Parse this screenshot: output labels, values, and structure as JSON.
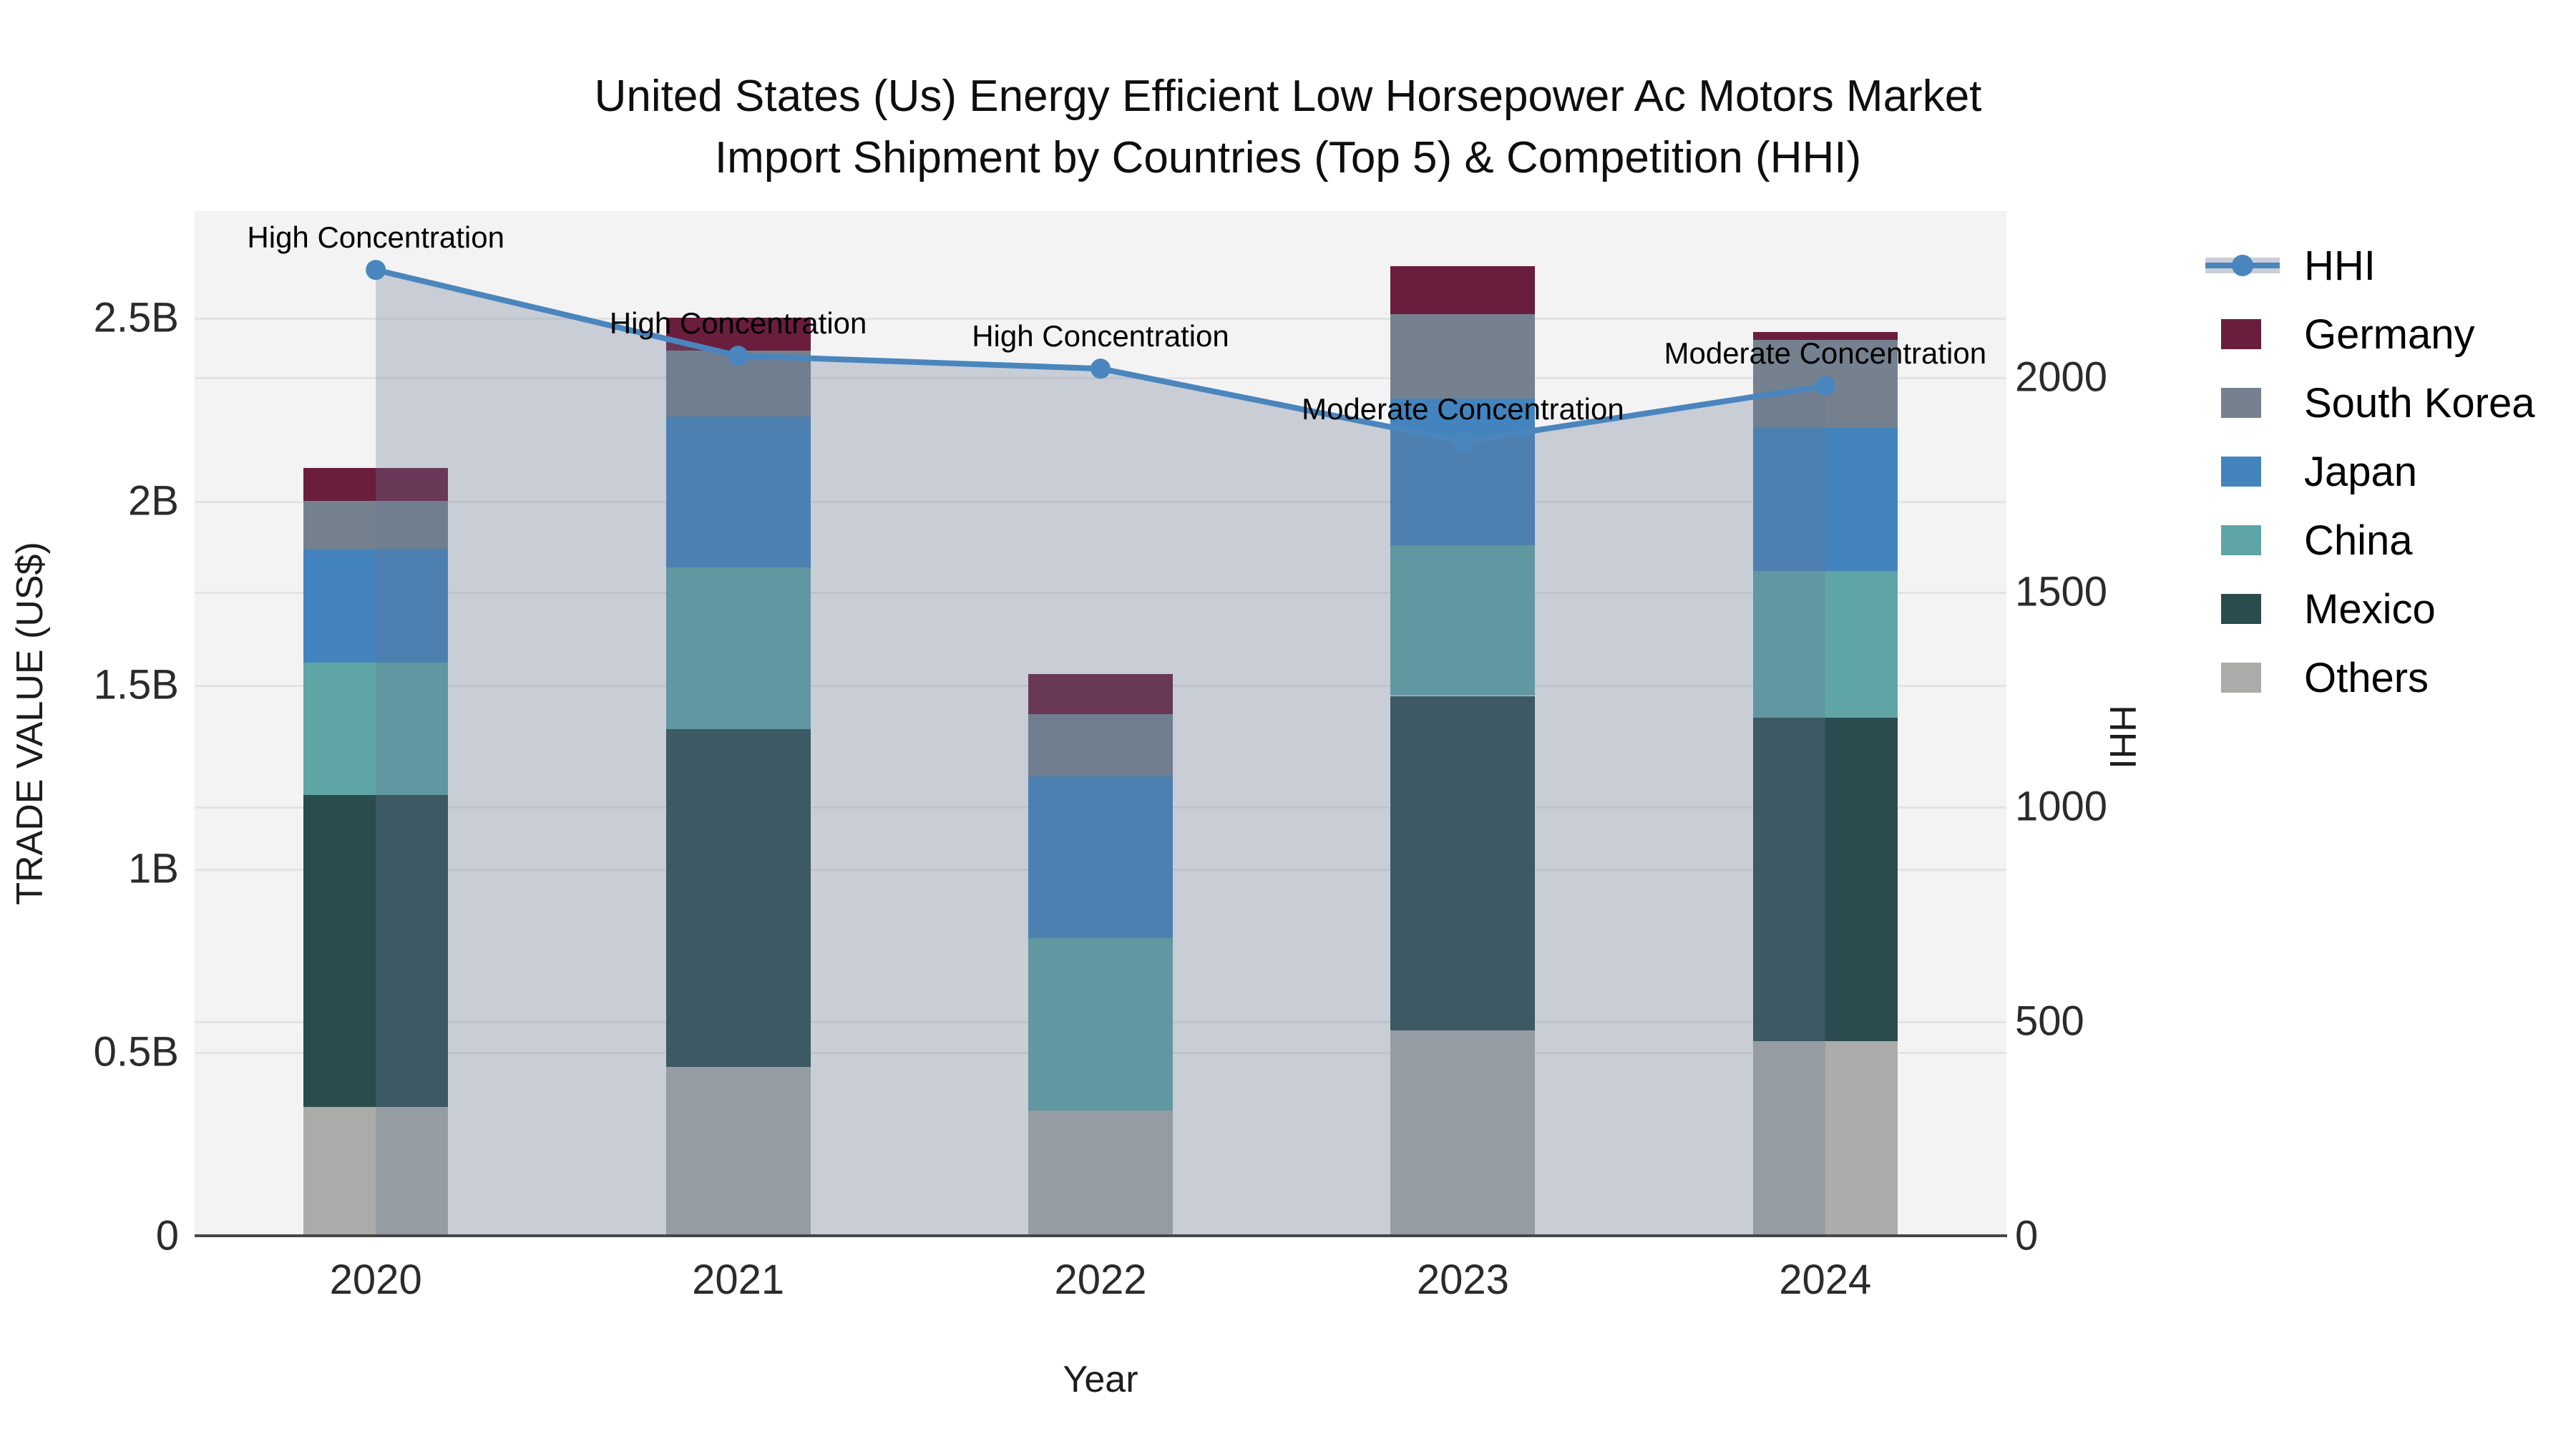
{
  "title": {
    "line1": "United States (Us) Energy Efficient Low Horsepower Ac Motors Market",
    "line2": "Import Shipment by Countries (Top 5) & Competition (HHI)"
  },
  "axes": {
    "y_left_title": "TRADE VALUE (US$)",
    "y_right_title": "HHI",
    "x_title": "Year"
  },
  "legend": {
    "items": [
      {
        "label": "HHI",
        "type": "line",
        "color": "#4A86BD",
        "band_color": "#C9CED8"
      },
      {
        "label": "Germany",
        "type": "box",
        "color": "#6B1D3D"
      },
      {
        "label": "South Korea",
        "type": "box",
        "color": "#75818F"
      },
      {
        "label": "Japan",
        "type": "box",
        "color": "#4384BE"
      },
      {
        "label": "China",
        "type": "box",
        "color": "#5FA5A5"
      },
      {
        "label": "Mexico",
        "type": "box",
        "color": "#2B4C4E"
      },
      {
        "label": "Others",
        "type": "box",
        "color": "#ABACA9"
      }
    ]
  },
  "chart_data": {
    "type": "bar+line",
    "title": "United States (Us) Energy Efficient Low Horsepower Ac Motors Market Import Shipment by Countries (Top 5) & Competition (HHI)",
    "categories": [
      "2020",
      "2021",
      "2022",
      "2023",
      "2024"
    ],
    "xlabel": "Year",
    "ylabel_left": "TRADE VALUE (US$)",
    "ylabel_right": "HHI",
    "bar_mode": "stacked",
    "bar_series": [
      {
        "name": "Others",
        "color": "#ABACA9",
        "values": [
          0.35,
          0.46,
          0.34,
          0.56,
          0.53
        ]
      },
      {
        "name": "Mexico",
        "color": "#2B4C4E",
        "values": [
          0.85,
          0.92,
          0.0,
          0.91,
          0.88
        ]
      },
      {
        "name": "China",
        "color": "#5FA5A5",
        "values": [
          0.36,
          0.44,
          0.47,
          0.41,
          0.4
        ]
      },
      {
        "name": "Japan",
        "color": "#4384BE",
        "values": [
          0.31,
          0.41,
          0.44,
          0.4,
          0.39
        ]
      },
      {
        "name": "South Korea",
        "color": "#75818F",
        "values": [
          0.13,
          0.18,
          0.17,
          0.23,
          0.24
        ]
      },
      {
        "name": "Germany",
        "color": "#6B1D3D",
        "values": [
          0.09,
          0.09,
          0.11,
          0.13,
          0.02
        ]
      }
    ],
    "bar_totals_billion": [
      2.09,
      2.5,
      1.53,
      2.64,
      2.46
    ],
    "line_series": {
      "name": "HHI",
      "color": "#4A86BD",
      "area_fill_color": "rgba(103,120,150,0.30)",
      "values": [
        2250,
        2050,
        2020,
        1850,
        1980
      ]
    },
    "annotations": [
      {
        "x": "2020",
        "text": "High Concentration"
      },
      {
        "x": "2021",
        "text": "High Concentration"
      },
      {
        "x": "2022",
        "text": "High Concentration"
      },
      {
        "x": "2023",
        "text": "Moderate Concentration"
      },
      {
        "x": "2024",
        "text": "Moderate Concentration"
      }
    ],
    "y_left": {
      "ticks": [
        0,
        0.5,
        1,
        1.5,
        2,
        2.5
      ],
      "tick_labels": [
        "0",
        "0.5B",
        "1B",
        "1.5B",
        "2B",
        "2.5B"
      ],
      "range": [
        0,
        2.79
      ]
    },
    "y_right": {
      "ticks": [
        0,
        500,
        1000,
        1500,
        2000
      ],
      "tick_labels": [
        "0",
        "500",
        "1000",
        "1500",
        "2000"
      ],
      "range": [
        0,
        2387
      ]
    },
    "grid": true,
    "legend_position": "top-right-outside",
    "plot_bg": "#f3f3f3"
  }
}
